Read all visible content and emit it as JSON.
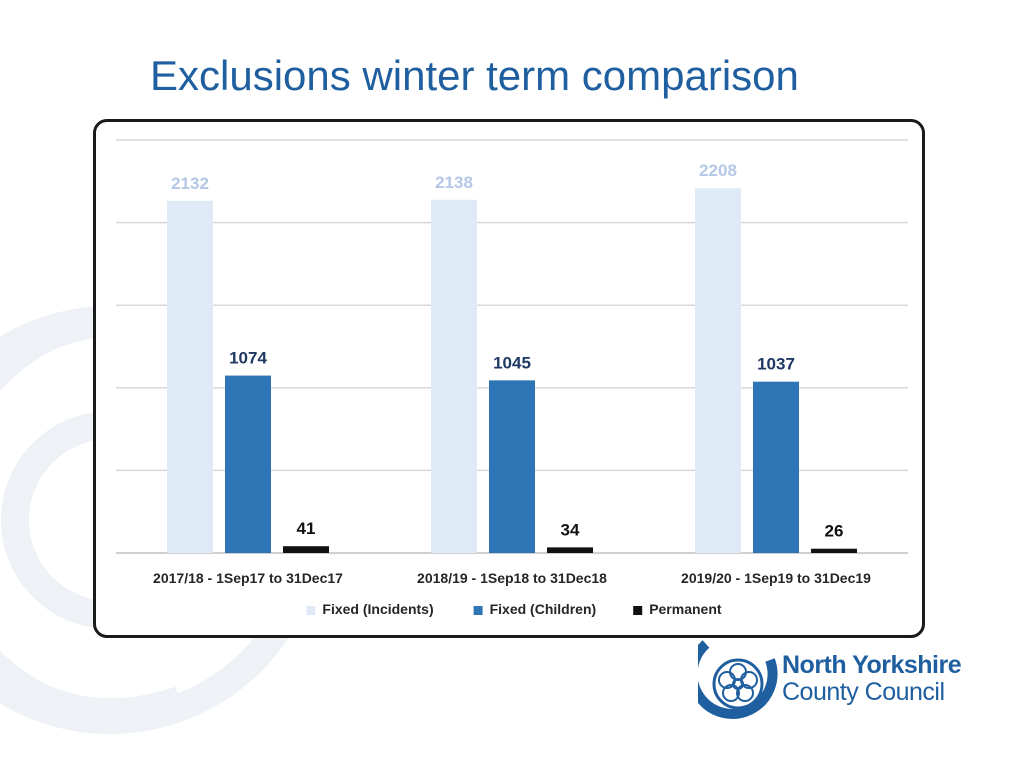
{
  "slide": {
    "title": "Exclusions winter term comparison"
  },
  "logo": {
    "line1": "North Yorkshire",
    "line2": "County Council"
  },
  "chart_data": {
    "type": "bar",
    "title": "",
    "categories": [
      "2017/18 - 1Sep17 to 31Dec17",
      "2018/19 - 1Sep18 to 31Dec18",
      "2019/20 - 1Sep19 to 31Dec19"
    ],
    "series": [
      {
        "name": "Fixed (Incidents)",
        "values": [
          2132,
          2138,
          2208
        ],
        "color": "#deebf7"
      },
      {
        "name": "Fixed (Children)",
        "values": [
          1074,
          1045,
          1037
        ],
        "color": "#2e75b6"
      },
      {
        "name": "Permanent",
        "values": [
          41,
          34,
          26
        ],
        "color": "#111111"
      }
    ],
    "label_colors": [
      "#b4c7e7",
      "#1f3864",
      "#111111"
    ],
    "ylim": [
      0,
      2500
    ],
    "grid": true,
    "legend": "bottom",
    "data_labels": true
  }
}
